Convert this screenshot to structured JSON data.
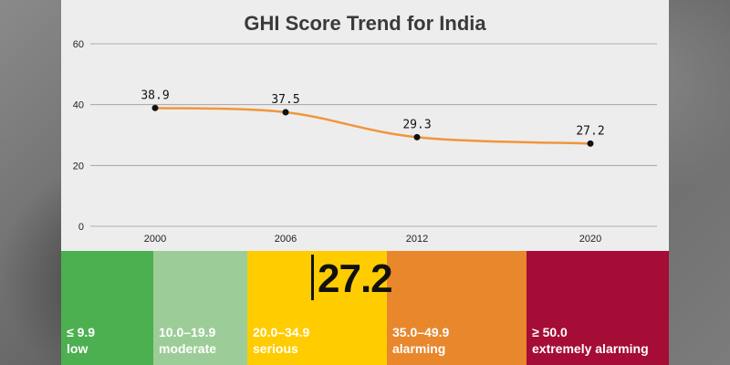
{
  "title": "GHI Score Trend for India",
  "chart_data": {
    "type": "line",
    "title": "GHI Score Trend for India",
    "x": [
      "2000",
      "2006",
      "2012",
      "2020"
    ],
    "series": [
      {
        "values": [
          38.9,
          37.5,
          29.3,
          27.2
        ]
      }
    ],
    "ylim": [
      0,
      60
    ],
    "yticks": [
      0,
      20,
      40,
      60
    ],
    "grid": true,
    "line_color": "#f0963c"
  },
  "score": {
    "value": "27.2"
  },
  "severity_scale": [
    {
      "range": "≤ 9.9",
      "label": "low",
      "color": "#4caf50"
    },
    {
      "range": "10.0–19.9",
      "label": "moderate",
      "color": "#9ccd98"
    },
    {
      "range": "20.0–34.9",
      "label": "serious",
      "color": "#ffcc00"
    },
    {
      "range": "35.0–49.9",
      "label": "alarming",
      "color": "#e8872c"
    },
    {
      "range": "≥ 50.0",
      "label": "extremely alarming",
      "color": "#a50c36"
    }
  ]
}
